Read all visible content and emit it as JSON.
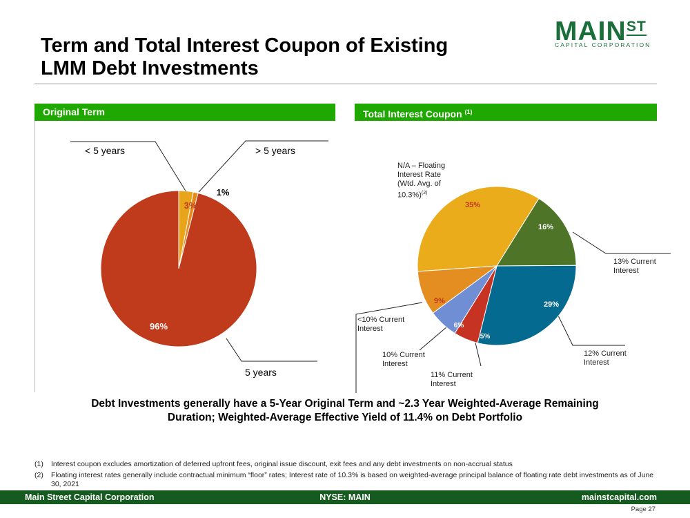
{
  "title_line1": "Term and Total Interest Coupon of Existing",
  "title_line2": "LMM Debt Investments",
  "logo": {
    "main": "MAIN",
    "st": "ST",
    "sub": "CAPITAL CORPORATION"
  },
  "left_panel": {
    "header": "Original Term"
  },
  "right_panel": {
    "header": "Total Interest Coupon",
    "header_note": "(1)"
  },
  "chart_data": [
    {
      "type": "pie",
      "title": "Original Term",
      "slices": [
        {
          "label": "< 5 years",
          "value": 3,
          "value_label": "3%",
          "color": "#e8a41a"
        },
        {
          "label": "> 5 years",
          "value": 1,
          "value_label": "1%",
          "color": "#e88a1a"
        },
        {
          "label": "5 years",
          "value": 96,
          "value_label": "96%",
          "color": "#c03a1c"
        }
      ]
    },
    {
      "type": "pie",
      "title": "Total Interest Coupon",
      "slices": [
        {
          "label": "N/A – Floating Interest Rate (Wtd. Avg. of 10.3%)",
          "label_note": "(2)",
          "value": 35,
          "value_label": "35%",
          "color": "#eaac1a"
        },
        {
          "label": "13% Current Interest",
          "value": 16,
          "value_label": "16%",
          "color": "#4e7428"
        },
        {
          "label": "12% Current Interest",
          "value": 29,
          "value_label": "29%",
          "color": "#046a90"
        },
        {
          "label": "11% Current Interest",
          "value": 5,
          "value_label": "5%",
          "color": "#c63322"
        },
        {
          "label": "10% Current Interest",
          "value": 6,
          "value_label": "6%",
          "color": "#6f8ed4"
        },
        {
          "label": "<10% Current Interest",
          "value": 9,
          "value_label": "9%",
          "color": "#e48e22"
        }
      ]
    }
  ],
  "callouts": {
    "lt5": "< 5 years",
    "gt5": "> 5 years",
    "five": "5 years",
    "floating": [
      "N/A – Floating",
      "Interest Rate",
      "(Wtd. Avg. of",
      "10.3%)"
    ],
    "floating_note": "(2)",
    "c13": [
      "13% Current",
      "Interest"
    ],
    "c12": [
      "12% Current",
      "Interest"
    ],
    "c11": [
      "11% Current",
      "Interest"
    ],
    "c10": [
      "10% Current",
      "Interest"
    ],
    "lt10": [
      "<10% Current",
      "Interest"
    ]
  },
  "summary_line1": "Debt Investments generally have a 5-Year Original Term and ~2.3 Year Weighted-Average Remaining",
  "summary_line2": "Duration;   Weighted-Average Effective Yield of 11.4% on Debt Portfolio",
  "footnotes": [
    {
      "num": "(1)",
      "text": "Interest coupon excludes amortization of deferred upfront fees, original issue discount, exit fees and any debt investments on non-accrual status"
    },
    {
      "num": "(2)",
      "text": "Floating interest rates generally include contractual minimum “floor” rates; Interest rate of 10.3% is based on weighted-average principal balance of floating rate debt investments as of June 30, 2021"
    }
  ],
  "footer": {
    "left": "Main Street Capital Corporation",
    "center": "NYSE: MAIN",
    "right": "mainstcapital.com"
  },
  "page": "Page  27"
}
